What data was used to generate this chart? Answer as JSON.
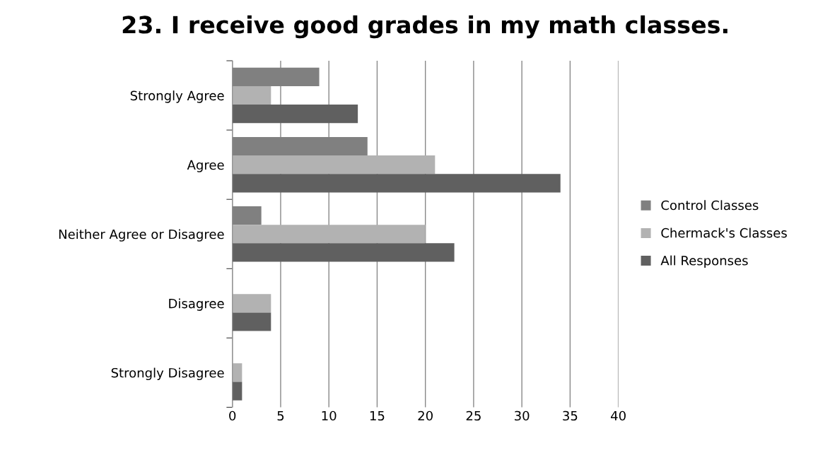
{
  "chart_data": {
    "type": "bar",
    "orientation": "horizontal",
    "title": "23. I receive good grades in my math classes.",
    "categories": [
      "Strongly Agree",
      "Agree",
      "Neither Agree or Disagree",
      "Disagree",
      "Strongly Disagree"
    ],
    "series": [
      {
        "name": "Control Classes",
        "color": "#808080",
        "values": [
          9,
          14,
          3,
          0,
          0
        ]
      },
      {
        "name": "Chermack's Classes",
        "color": "#b2b2b2",
        "values": [
          4,
          21,
          20,
          4,
          1
        ]
      },
      {
        "name": "All Responses",
        "color": "#606060",
        "values": [
          13,
          34,
          23,
          4,
          1
        ]
      }
    ],
    "xlim": [
      0,
      40
    ],
    "xticks": [
      0,
      5,
      10,
      15,
      20,
      25,
      30,
      35,
      40
    ],
    "grid": "x",
    "legend": "right"
  }
}
